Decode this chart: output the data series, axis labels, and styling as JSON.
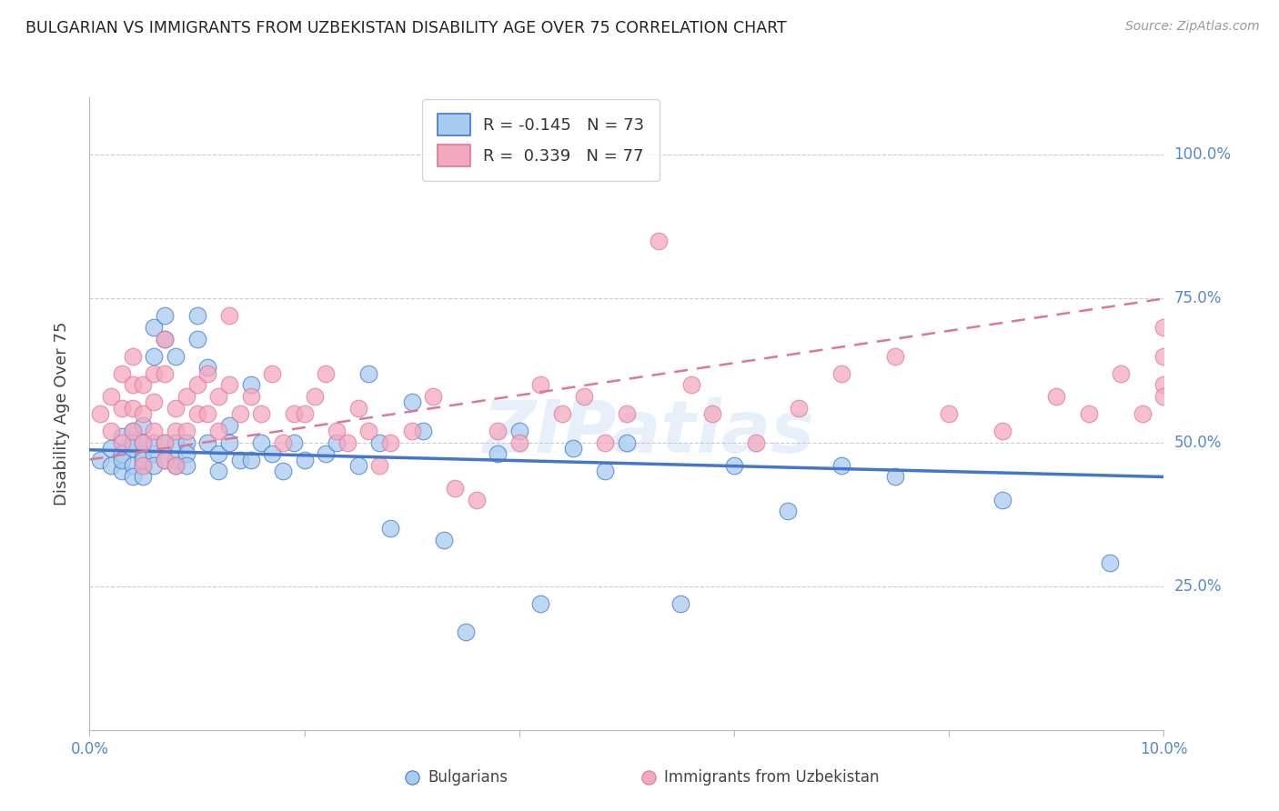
{
  "title": "BULGARIAN VS IMMIGRANTS FROM UZBEKISTAN DISABILITY AGE OVER 75 CORRELATION CHART",
  "source": "Source: ZipAtlas.com",
  "ylabel": "Disability Age Over 75",
  "ytick_labels": [
    "100.0%",
    "75.0%",
    "50.0%",
    "25.0%"
  ],
  "ytick_values": [
    1.0,
    0.75,
    0.5,
    0.25
  ],
  "xlim": [
    0.0,
    0.1
  ],
  "ylim": [
    0.0,
    1.1
  ],
  "legend_blue_R": "R = -0.145",
  "legend_blue_N": "N = 73",
  "legend_pink_R": "R =  0.339",
  "legend_pink_N": "N = 77",
  "blue_color": "#A8CCF0",
  "pink_color": "#F4A8C0",
  "trendline_blue_color": "#4477CC",
  "trendline_pink_color": "#DD7799",
  "title_color": "#222222",
  "source_color": "#999999",
  "axis_label_color": "#444444",
  "tick_color": "#5588CC",
  "grid_color": "#CCCCCC",
  "watermark": "ZIPatlas",
  "blue_x": [
    0.001,
    0.002,
    0.002,
    0.003,
    0.003,
    0.003,
    0.003,
    0.004,
    0.004,
    0.004,
    0.004,
    0.004,
    0.005,
    0.005,
    0.005,
    0.005,
    0.005,
    0.005,
    0.006,
    0.006,
    0.006,
    0.006,
    0.006,
    0.007,
    0.007,
    0.007,
    0.007,
    0.008,
    0.008,
    0.008,
    0.008,
    0.009,
    0.009,
    0.009,
    0.01,
    0.01,
    0.011,
    0.011,
    0.012,
    0.012,
    0.013,
    0.013,
    0.014,
    0.015,
    0.015,
    0.016,
    0.017,
    0.018,
    0.019,
    0.02,
    0.022,
    0.023,
    0.025,
    0.026,
    0.027,
    0.028,
    0.03,
    0.031,
    0.033,
    0.035,
    0.038,
    0.04,
    0.042,
    0.045,
    0.048,
    0.05,
    0.055,
    0.06,
    0.065,
    0.07,
    0.075,
    0.085,
    0.095
  ],
  "blue_y": [
    0.47,
    0.49,
    0.46,
    0.51,
    0.48,
    0.45,
    0.47,
    0.52,
    0.49,
    0.46,
    0.44,
    0.5,
    0.53,
    0.48,
    0.46,
    0.44,
    0.5,
    0.47,
    0.7,
    0.65,
    0.48,
    0.46,
    0.5,
    0.72,
    0.5,
    0.47,
    0.68,
    0.5,
    0.47,
    0.65,
    0.46,
    0.5,
    0.48,
    0.46,
    0.72,
    0.68,
    0.5,
    0.63,
    0.48,
    0.45,
    0.53,
    0.5,
    0.47,
    0.6,
    0.47,
    0.5,
    0.48,
    0.45,
    0.5,
    0.47,
    0.48,
    0.5,
    0.46,
    0.62,
    0.5,
    0.35,
    0.57,
    0.52,
    0.33,
    0.17,
    0.48,
    0.52,
    0.22,
    0.49,
    0.45,
    0.5,
    0.22,
    0.46,
    0.38,
    0.46,
    0.44,
    0.4,
    0.29
  ],
  "pink_x": [
    0.001,
    0.002,
    0.002,
    0.003,
    0.003,
    0.003,
    0.004,
    0.004,
    0.004,
    0.004,
    0.005,
    0.005,
    0.005,
    0.005,
    0.006,
    0.006,
    0.006,
    0.007,
    0.007,
    0.007,
    0.007,
    0.008,
    0.008,
    0.008,
    0.009,
    0.009,
    0.01,
    0.01,
    0.011,
    0.011,
    0.012,
    0.012,
    0.013,
    0.013,
    0.014,
    0.015,
    0.016,
    0.017,
    0.018,
    0.019,
    0.02,
    0.021,
    0.022,
    0.023,
    0.024,
    0.025,
    0.026,
    0.027,
    0.028,
    0.03,
    0.032,
    0.034,
    0.036,
    0.038,
    0.04,
    0.042,
    0.044,
    0.046,
    0.048,
    0.05,
    0.053,
    0.056,
    0.058,
    0.062,
    0.066,
    0.07,
    0.075,
    0.08,
    0.085,
    0.09,
    0.093,
    0.096,
    0.098,
    0.1,
    0.1,
    0.1,
    0.1
  ],
  "pink_y": [
    0.55,
    0.58,
    0.52,
    0.62,
    0.56,
    0.5,
    0.6,
    0.65,
    0.56,
    0.52,
    0.6,
    0.55,
    0.5,
    0.46,
    0.62,
    0.57,
    0.52,
    0.68,
    0.62,
    0.5,
    0.47,
    0.56,
    0.52,
    0.46,
    0.58,
    0.52,
    0.6,
    0.55,
    0.62,
    0.55,
    0.58,
    0.52,
    0.6,
    0.72,
    0.55,
    0.58,
    0.55,
    0.62,
    0.5,
    0.55,
    0.55,
    0.58,
    0.62,
    0.52,
    0.5,
    0.56,
    0.52,
    0.46,
    0.5,
    0.52,
    0.58,
    0.42,
    0.4,
    0.52,
    0.5,
    0.6,
    0.55,
    0.58,
    0.5,
    0.55,
    0.85,
    0.6,
    0.55,
    0.5,
    0.56,
    0.62,
    0.65,
    0.55,
    0.52,
    0.58,
    0.55,
    0.62,
    0.55,
    0.65,
    0.6,
    0.7,
    0.58
  ]
}
